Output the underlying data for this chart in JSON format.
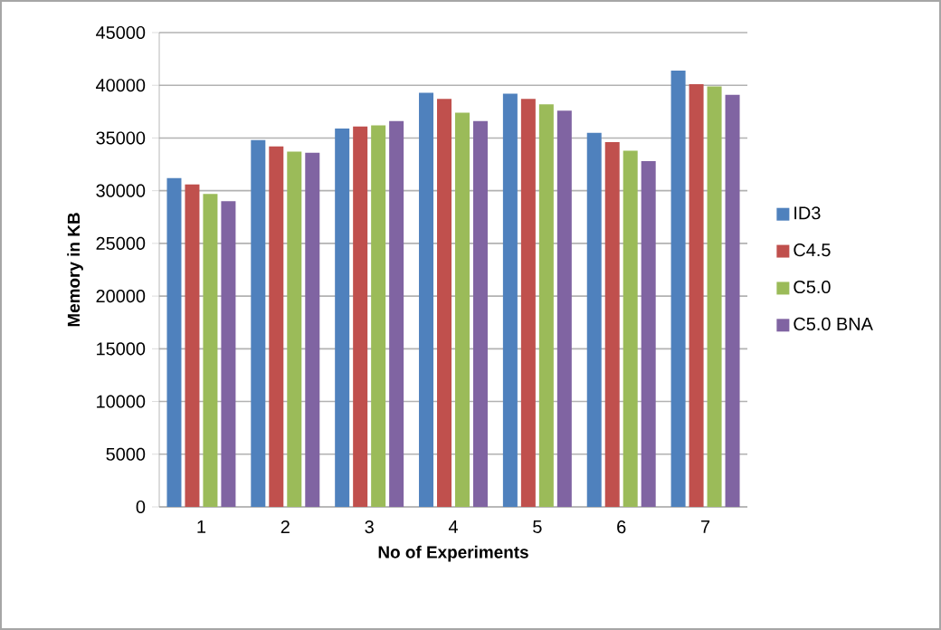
{
  "chart_data": {
    "type": "bar",
    "xlabel": "No of Experiments",
    "ylabel": "Memory in KB",
    "categories": [
      "1",
      "2",
      "3",
      "4",
      "5",
      "6",
      "7"
    ],
    "series": [
      {
        "name": "ID3",
        "color": "#4f81bd",
        "values": [
          31200,
          34800,
          35900,
          39300,
          39200,
          35500,
          41400
        ]
      },
      {
        "name": "C4.5",
        "color": "#c0504d",
        "values": [
          30600,
          34200,
          36100,
          38700,
          38700,
          34600,
          40100
        ]
      },
      {
        "name": "C5.0",
        "color": "#9bbb59",
        "values": [
          29700,
          33700,
          36200,
          37400,
          38200,
          33800,
          39900
        ]
      },
      {
        "name": "C5.0 BNA",
        "color": "#8064a2",
        "values": [
          29000,
          33600,
          36600,
          36600,
          37600,
          32800,
          39100
        ]
      }
    ],
    "ylim": [
      0,
      45000
    ],
    "yticks": [
      0,
      5000,
      10000,
      15000,
      20000,
      25000,
      30000,
      35000,
      40000,
      45000
    ],
    "grid": "y",
    "legend": "right"
  }
}
